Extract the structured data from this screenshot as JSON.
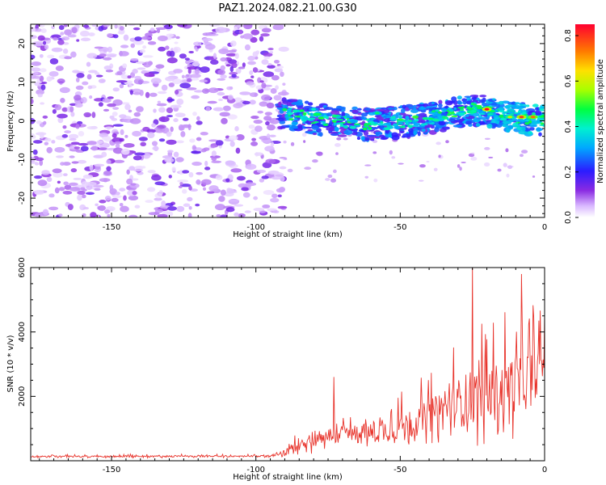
{
  "title": "PAZ1.2024.082.21.00.G30",
  "chart_data": [
    {
      "type": "heatmap",
      "xlabel": "Height of straight line (km)",
      "ylabel": "Frequency (Hz)",
      "xlim": [
        -178,
        0
      ],
      "ylim": [
        -25,
        25
      ],
      "x_ticks": [
        -150,
        -100,
        -50,
        0
      ],
      "y_ticks": [
        -20,
        -10,
        0,
        10,
        20
      ],
      "colorbar": {
        "label": "Normalized spectral amplitude",
        "range": [
          0,
          0.85
        ],
        "ticks": [
          "0.0",
          "0.2",
          "0.4",
          "0.6",
          "0.8"
        ],
        "placement": "right"
      },
      "features": {
        "noise_region_x": [
          -178,
          -90
        ],
        "noise_amplitude": "0.05-0.15",
        "signal_band_x": [
          -92,
          0
        ],
        "signal_center_freq_hz": [
          2,
          0,
          -1,
          0,
          3,
          1,
          0
        ],
        "signal_center_x_km": [
          -90,
          -75,
          -60,
          -45,
          -25,
          -10,
          0
        ],
        "signal_peak_amplitude": 0.85,
        "peak_locations": [
          {
            "x": -20,
            "freq": 3,
            "amp": 0.85
          },
          {
            "x": -8,
            "freq": 1,
            "amp": 0.8
          },
          {
            "x": -4,
            "freq": 1,
            "amp": 0.75
          },
          {
            "x": -12,
            "freq": 1,
            "amp": 0.6
          },
          {
            "x": -58,
            "freq": 2,
            "amp": 0.45
          },
          {
            "x": -80,
            "freq": 3,
            "amp": 0.4
          }
        ]
      }
    },
    {
      "type": "line",
      "xlabel": "Height of straight line (km)",
      "ylabel": "SNR (10 * v/v)",
      "xlim": [
        -178,
        0
      ],
      "ylim": [
        0,
        6000
      ],
      "x_ticks": [
        -150,
        -100,
        -50,
        0
      ],
      "y_ticks": [
        2000,
        4000,
        6000
      ],
      "series": [
        {
          "color": "#e8342c",
          "x": [
            -178,
            -95,
            -90,
            -85,
            -80,
            -75,
            -70,
            -65,
            -60,
            -55,
            -50,
            -45,
            -40,
            -35,
            -30,
            -25,
            -20,
            -15,
            -10,
            -5,
            0
          ],
          "baseline": [
            120,
            130,
            200,
            450,
            600,
            650,
            700,
            700,
            720,
            800,
            900,
            1000,
            1200,
            1300,
            1500,
            1600,
            1700,
            1800,
            2000,
            2200,
            2800
          ],
          "spread": [
            80,
            90,
            300,
            700,
            900,
            900,
            1000,
            1000,
            1100,
            1200,
            1300,
            1400,
            1700,
            2000,
            2500,
            3000,
            3000,
            3000,
            3200,
            3000,
            1800
          ]
        }
      ],
      "notable_peaks": [
        {
          "x": -73,
          "y": 2600
        },
        {
          "x": -25,
          "y": 6100
        },
        {
          "x": -8,
          "y": 5800
        },
        {
          "x": 0,
          "y": 4600
        }
      ]
    }
  ]
}
